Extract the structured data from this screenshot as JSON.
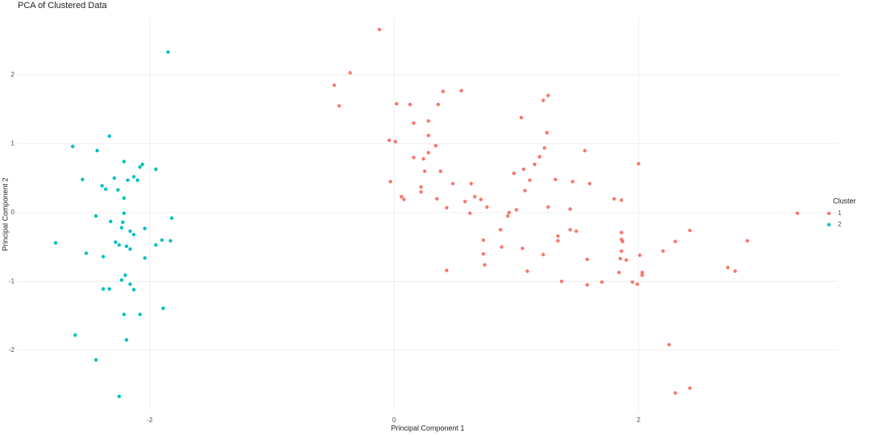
{
  "chart_data": {
    "type": "scatter",
    "title": "PCA of Clustered Data",
    "x_label": "Principal Component 1",
    "y_label": "Principal Component 2",
    "legend_title": "Cluster",
    "legend_position": "right",
    "grid": true,
    "xlim": [
      -3.08,
      3.63
    ],
    "ylim": [
      -2.88,
      2.83
    ],
    "xticks": [
      -2,
      0,
      2
    ],
    "yticks": [
      -2,
      -1,
      0,
      1,
      2
    ],
    "series": [
      {
        "name": "1",
        "color": "#f8766d",
        "x": [
          -0.12,
          -0.36,
          -0.49,
          -0.45,
          0.02,
          0.13,
          0.36,
          0.4,
          0.55,
          0.28,
          0.16,
          1.04,
          1.26,
          1.22,
          1.25,
          0.28,
          -0.04,
          0.01,
          0.34,
          0.28,
          1.23,
          1.56,
          0.16,
          0.24,
          1.19,
          1.15,
          2.0,
          1.06,
          0.98,
          0.25,
          0.38,
          1.11,
          1.32,
          1.46,
          1.6,
          -0.03,
          0.48,
          0.63,
          0.22,
          0.22,
          1.07,
          0.06,
          0.08,
          0.35,
          0.58,
          0.66,
          0.71,
          0.76,
          1.0,
          0.94,
          0.93,
          1.44,
          1.26,
          0.43,
          0.62,
          1.8,
          1.86,
          3.3,
          2.42,
          1.44,
          1.49,
          0.87,
          1.34,
          1.86,
          0.73,
          1.34,
          1.86,
          1.87,
          2.3,
          2.89,
          0.88,
          1.05,
          1.86,
          2.2,
          0.73,
          1.22,
          2.01,
          1.58,
          1.85,
          1.9,
          0.74,
          2.73,
          2.79,
          0.43,
          1.09,
          1.84,
          2.03,
          2.03,
          1.37,
          1.7,
          1.95,
          1.99,
          1.58,
          2.25,
          2.3,
          2.42
        ],
        "values": [
          2.66,
          2.03,
          1.85,
          1.55,
          1.58,
          1.57,
          1.57,
          1.76,
          1.77,
          1.33,
          1.3,
          1.38,
          1.7,
          1.63,
          1.16,
          1.12,
          1.05,
          1.03,
          0.97,
          0.87,
          0.94,
          0.9,
          0.8,
          0.78,
          0.81,
          0.7,
          0.71,
          0.63,
          0.57,
          0.6,
          0.6,
          0.47,
          0.48,
          0.45,
          0.42,
          0.45,
          0.42,
          0.42,
          0.37,
          0.3,
          0.32,
          0.23,
          0.19,
          0.2,
          0.16,
          0.23,
          0.19,
          0.08,
          0.04,
          0.0,
          -0.05,
          0.05,
          0.08,
          0.07,
          -0.01,
          0.2,
          0.18,
          -0.01,
          -0.26,
          -0.25,
          -0.27,
          -0.25,
          -0.34,
          -0.29,
          -0.4,
          -0.41,
          -0.39,
          -0.42,
          -0.42,
          -0.41,
          -0.5,
          -0.52,
          -0.56,
          -0.56,
          -0.6,
          -0.61,
          -0.62,
          -0.68,
          -0.67,
          -0.69,
          -0.76,
          -0.8,
          -0.85,
          -0.84,
          -0.85,
          -0.87,
          -0.87,
          -0.91,
          -1.0,
          -1.01,
          -1.01,
          -1.04,
          -1.05,
          -1.92,
          -2.62,
          -2.55
        ]
      },
      {
        "name": "2",
        "color": "#00bfc4",
        "x": [
          -1.85,
          -2.33,
          -2.63,
          -2.43,
          -2.21,
          -2.06,
          -2.08,
          -1.95,
          -2.55,
          -2.29,
          -2.18,
          -2.13,
          -2.1,
          -2.39,
          -2.36,
          -2.26,
          -2.21,
          -2.21,
          -2.44,
          -1.82,
          -2.32,
          -2.22,
          -2.23,
          -2.04,
          -2.16,
          -2.13,
          -1.9,
          -1.83,
          -2.77,
          -2.28,
          -2.25,
          -1.95,
          -2.19,
          -2.16,
          -2.52,
          -2.38,
          -2.04,
          -2.2,
          -2.23,
          -2.16,
          -2.13,
          -2.38,
          -2.33,
          -1.89,
          -2.21,
          -2.08,
          -2.61,
          -2.19,
          -2.44,
          -2.25
        ],
        "values": [
          2.33,
          1.11,
          0.96,
          0.9,
          0.74,
          0.7,
          0.66,
          0.63,
          0.48,
          0.5,
          0.47,
          0.52,
          0.47,
          0.39,
          0.34,
          0.33,
          0.21,
          -0.01,
          -0.05,
          -0.08,
          -0.13,
          -0.14,
          -0.22,
          -0.23,
          -0.27,
          -0.32,
          -0.4,
          -0.41,
          -0.44,
          -0.43,
          -0.47,
          -0.47,
          -0.49,
          -0.53,
          -0.59,
          -0.64,
          -0.66,
          -0.91,
          -0.98,
          -1.04,
          -1.12,
          -1.11,
          -1.11,
          -1.39,
          -1.48,
          -1.48,
          -1.78,
          -1.85,
          -2.14,
          -2.67
        ]
      }
    ]
  }
}
